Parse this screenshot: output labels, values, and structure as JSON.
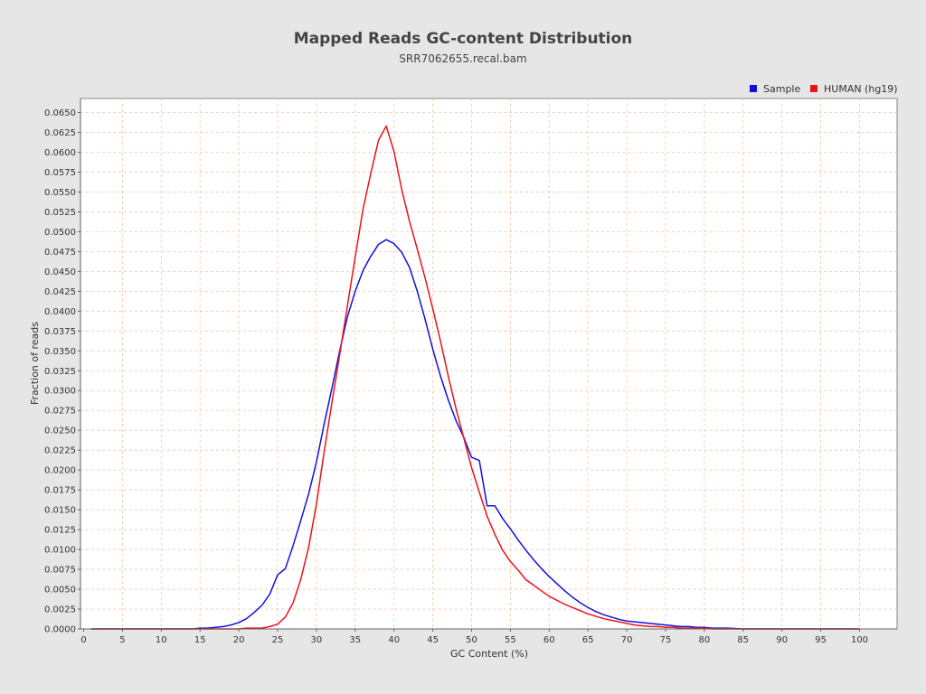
{
  "chart_data": {
    "type": "line",
    "title": "Mapped Reads GC-content Distribution",
    "subtitle": "SRR7062655.recal.bam",
    "xlabel": "GC Content (%)",
    "ylabel": "Fraction of reads",
    "xlim": [
      0,
      105
    ],
    "ylim": [
      0,
      0.066
    ],
    "x_ticks": [
      0,
      5,
      10,
      15,
      20,
      25,
      30,
      35,
      40,
      45,
      50,
      55,
      60,
      65,
      70,
      75,
      80,
      85,
      90,
      95,
      100
    ],
    "y_ticks": [
      "0.0000",
      "0.0025",
      "0.0050",
      "0.0075",
      "0.0100",
      "0.0125",
      "0.0150",
      "0.0175",
      "0.0200",
      "0.0225",
      "0.0250",
      "0.0275",
      "0.0300",
      "0.0325",
      "0.0350",
      "0.0375",
      "0.0400",
      "0.0425",
      "0.0450",
      "0.0475",
      "0.0500",
      "0.0525",
      "0.0550",
      "0.0575",
      "0.0600",
      "0.0625",
      "0.0650"
    ],
    "grid": true,
    "legend_position": "top-right",
    "series": [
      {
        "name": "Sample",
        "color": "#1010dd",
        "x": [
          1,
          5,
          10,
          14,
          15,
          16,
          17,
          18,
          19,
          20,
          21,
          22,
          23,
          24,
          25,
          26,
          27,
          28,
          29,
          30,
          31,
          32,
          33,
          34,
          35,
          36,
          37,
          38,
          39,
          40,
          41,
          42,
          43,
          44,
          45,
          46,
          47,
          48,
          49,
          50,
          51,
          52,
          53,
          54,
          55,
          56,
          57,
          58,
          59,
          60,
          61,
          62,
          63,
          64,
          65,
          66,
          67,
          68,
          69,
          70,
          71,
          72,
          73,
          74,
          75,
          76,
          77,
          78,
          79,
          80,
          81,
          82,
          83,
          85,
          90,
          95,
          100
        ],
        "y": [
          0.0,
          0.0,
          0.0,
          0.0,
          0.0001,
          0.0001,
          0.0002,
          0.0003,
          0.0005,
          0.0008,
          0.0013,
          0.0021,
          0.003,
          0.0044,
          0.0068,
          0.0076,
          0.0105,
          0.0137,
          0.017,
          0.021,
          0.0258,
          0.0303,
          0.035,
          0.0393,
          0.0425,
          0.0451,
          0.0469,
          0.0484,
          0.049,
          0.0485,
          0.0474,
          0.0455,
          0.0425,
          0.039,
          0.0352,
          0.0318,
          0.0288,
          0.0262,
          0.0241,
          0.0216,
          0.0212,
          0.0155,
          0.0155,
          0.0139,
          0.0126,
          0.0112,
          0.0099,
          0.0087,
          0.0076,
          0.0066,
          0.0057,
          0.0048,
          0.004,
          0.0033,
          0.0027,
          0.0022,
          0.0018,
          0.0015,
          0.0012,
          0.001,
          0.0009,
          0.0008,
          0.0007,
          0.0006,
          0.0005,
          0.0004,
          0.0003,
          0.0003,
          0.0002,
          0.0002,
          0.0001,
          0.0001,
          0.0001,
          0.0,
          0.0,
          0.0,
          0.0
        ]
      },
      {
        "name": "HUMAN (hg19)",
        "color": "#e8141b",
        "x": [
          1,
          10,
          20,
          21,
          22,
          23,
          24,
          25,
          26,
          27,
          28,
          29,
          30,
          31,
          32,
          33,
          34,
          35,
          36,
          37,
          38,
          39,
          40,
          41,
          42,
          43,
          44,
          45,
          46,
          47,
          48,
          49,
          50,
          51,
          52,
          53,
          54,
          55,
          56,
          57,
          58,
          59,
          60,
          61,
          62,
          63,
          64,
          65,
          66,
          67,
          68,
          69,
          70,
          71,
          72,
          73,
          74,
          75,
          76,
          77,
          78,
          79,
          80,
          81,
          82,
          83,
          85,
          90,
          95,
          100
        ],
        "y": [
          0.0,
          0.0,
          0.0,
          0.0001,
          0.0001,
          0.0001,
          0.0003,
          0.0006,
          0.0015,
          0.0033,
          0.0063,
          0.0103,
          0.0157,
          0.0223,
          0.0285,
          0.0345,
          0.0407,
          0.0468,
          0.0528,
          0.0573,
          0.0615,
          0.0633,
          0.0601,
          0.0553,
          0.0513,
          0.0478,
          0.0442,
          0.0403,
          0.0362,
          0.0318,
          0.0277,
          0.024,
          0.0203,
          0.0172,
          0.0142,
          0.0119,
          0.0099,
          0.0085,
          0.0074,
          0.0062,
          0.0055,
          0.0048,
          0.0041,
          0.0036,
          0.0031,
          0.0027,
          0.0023,
          0.0019,
          0.0016,
          0.0013,
          0.0011,
          0.0009,
          0.0007,
          0.0005,
          0.0004,
          0.0003,
          0.0003,
          0.0002,
          0.0002,
          0.0001,
          0.0001,
          0.0001,
          0.0001,
          0.0,
          0.0,
          0.0,
          0.0,
          0.0,
          0.0,
          0.0
        ]
      }
    ]
  }
}
